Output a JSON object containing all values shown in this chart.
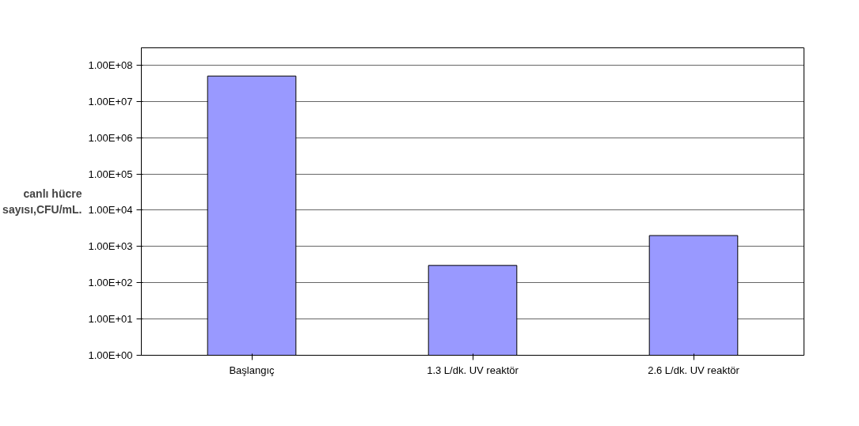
{
  "chart_data": {
    "type": "bar",
    "ylabel": "canlı hücre sayısı,CFU/mL.",
    "categories": [
      "Başlangıç",
      "1.3 L/dk. UV reaktör",
      "2.6 L/dk. UV reaktör"
    ],
    "values": [
      50000000,
      300,
      2000
    ],
    "color": "#9999ff",
    "log": "y",
    "ylim": [
      1,
      100000000
    ],
    "yticks": [
      {
        "value": 1,
        "label": "1.00E+00"
      },
      {
        "value": 10,
        "label": "1.00E+01"
      },
      {
        "value": 100,
        "label": "1.00E+02"
      },
      {
        "value": 1000,
        "label": "1.00E+03"
      },
      {
        "value": 10000,
        "label": "1.00E+04"
      },
      {
        "value": 100000,
        "label": "1.00E+05"
      },
      {
        "value": 1000000,
        "label": "1.00E+06"
      },
      {
        "value": 10000000,
        "label": "1.00E+07"
      },
      {
        "value": 100000000,
        "label": "1.00E+08"
      }
    ],
    "grid": "y"
  }
}
